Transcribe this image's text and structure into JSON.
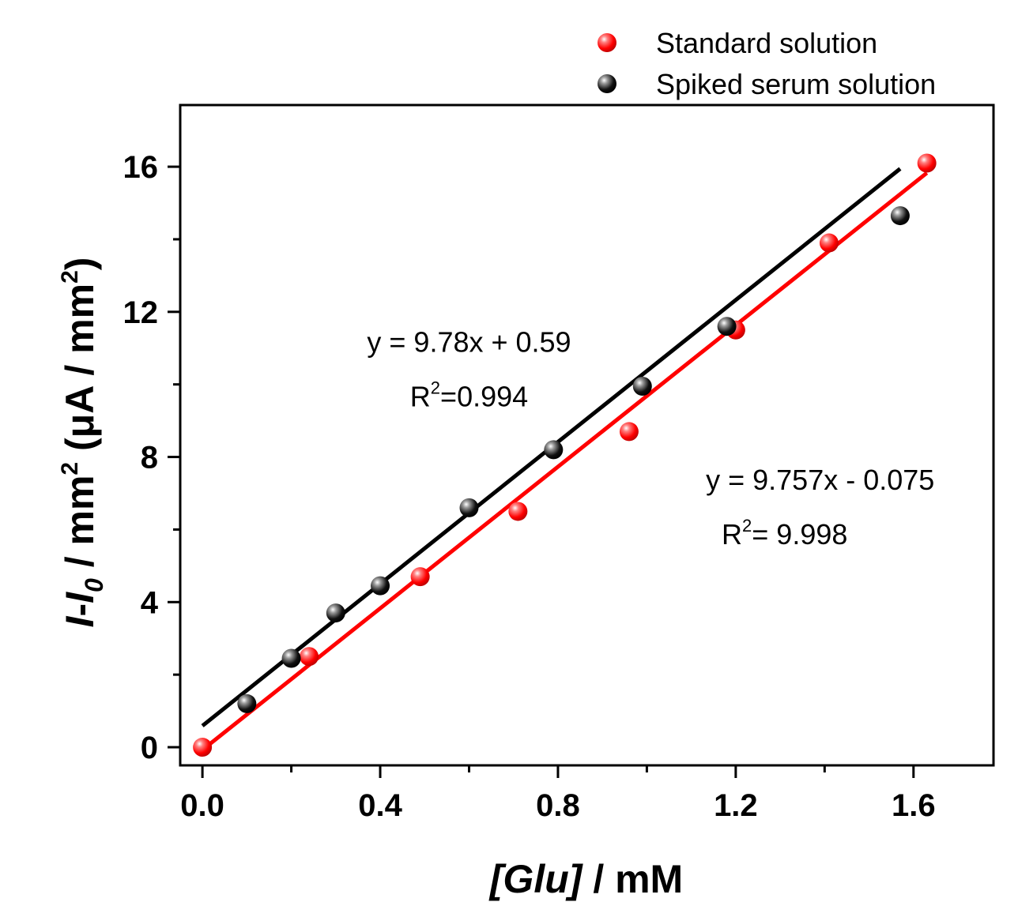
{
  "chart_data": {
    "type": "scatter",
    "title": "",
    "xlabel_parts": {
      "italic": "[Glu]",
      "rest": " / mM"
    },
    "ylabel_parts": {
      "i1": "I",
      "dash": "-",
      "i2": "I",
      "sub": "0",
      "mid": " / mm",
      "sup1": "2",
      "unit": " (μA / mm",
      "sup2": "2",
      "end": ")"
    },
    "xlim": [
      -0.05,
      1.78
    ],
    "ylim": [
      -0.5,
      17.7
    ],
    "xticks": [
      0.0,
      0.4,
      0.8,
      1.2,
      1.6
    ],
    "xtick_labels": [
      "0.0",
      "0.4",
      "0.8",
      "1.2",
      "1.6"
    ],
    "xminor": [
      0.2,
      0.6,
      1.0,
      1.4
    ],
    "yticks": [
      0,
      4,
      8,
      12,
      16
    ],
    "ytick_labels": [
      "0",
      "4",
      "8",
      "12",
      "16"
    ],
    "yminor": [
      2,
      6,
      10,
      14
    ],
    "legend": [
      {
        "label": "Standard solution",
        "color": "#ff0000"
      },
      {
        "label": "Spiked serum solution",
        "color": "#000000"
      }
    ],
    "series": [
      {
        "name": "Standard solution",
        "color": "#ff0000",
        "x": [
          0.0,
          0.24,
          0.49,
          0.71,
          0.96,
          1.2,
          1.41,
          1.63
        ],
        "y": [
          0.0,
          2.5,
          4.7,
          6.5,
          8.7,
          11.5,
          13.9,
          16.1
        ],
        "fit": {
          "x": [
            0.0,
            1.63
          ],
          "y": [
            -0.075,
            15.829
          ]
        }
      },
      {
        "name": "Spiked serum solution",
        "color": "#000000",
        "x": [
          0.1,
          0.2,
          0.3,
          0.4,
          0.6,
          0.79,
          0.99,
          1.18,
          1.57
        ],
        "y": [
          1.2,
          2.45,
          3.7,
          4.45,
          6.6,
          8.2,
          9.95,
          11.6,
          14.65
        ],
        "fit": {
          "x": [
            0.0,
            1.57
          ],
          "y": [
            0.59,
            15.945
          ]
        }
      }
    ],
    "annotations": [
      {
        "text": "y = 9.78x + 0.59",
        "x": 0.6,
        "y": 10.9
      },
      {
        "r2_base": "R",
        "r2_sup": "2",
        "r2_rest": "=0.994",
        "x": 0.6,
        "y": 9.4
      },
      {
        "text": "y = 9.757x - 0.075",
        "x": 1.39,
        "y": 7.1
      },
      {
        "r2_base": "R",
        "r2_sup": "2",
        "r2_rest": "= 9.998",
        "x": 1.31,
        "y": 5.6
      }
    ]
  }
}
